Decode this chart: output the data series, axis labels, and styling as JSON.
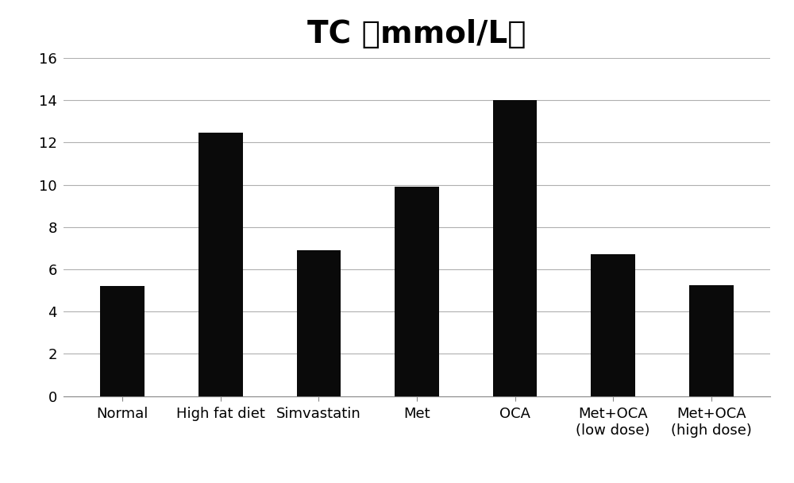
{
  "title": "TC （mmol/L）",
  "categories": [
    "Normal",
    "High fat diet",
    "Simvastatin",
    "Met",
    "OCA",
    "Met+OCA\n(low dose)",
    "Met+OCA\n(high dose)"
  ],
  "values": [
    5.2,
    12.45,
    6.9,
    9.9,
    14.0,
    6.7,
    5.25
  ],
  "bar_color": "#0a0a0a",
  "ylim": [
    0,
    16
  ],
  "yticks": [
    0,
    2,
    4,
    6,
    8,
    10,
    12,
    14,
    16
  ],
  "title_fontsize": 28,
  "tick_fontsize": 13,
  "grid_color": "#b0b0b0",
  "background_color": "#ffffff",
  "bar_width": 0.45
}
